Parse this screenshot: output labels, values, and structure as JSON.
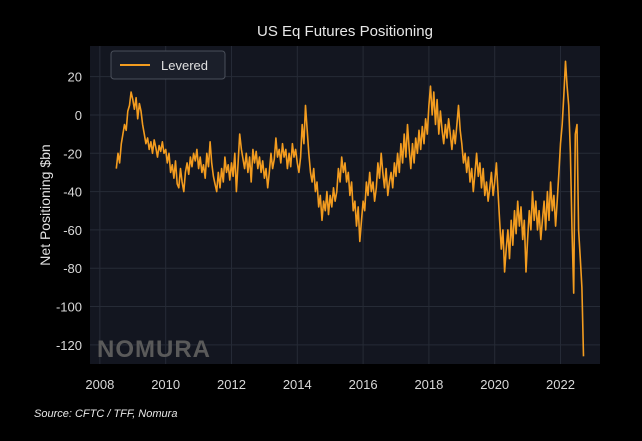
{
  "source_note": "Source: CFTC / TFF, Nomura",
  "watermark": "NOMURA",
  "colors": {
    "background": "#000000",
    "plot_background": "#131620",
    "grid": "#262b36",
    "line": "#f39c1f"
  },
  "chart_data": {
    "type": "line",
    "title": "US Eq Futures Positioning",
    "xlabel": "",
    "ylabel": "Net Positioning $bn",
    "xlim": [
      2007.7,
      2023.2
    ],
    "ylim": [
      -130,
      36
    ],
    "xticks": [
      2008,
      2010,
      2012,
      2014,
      2016,
      2018,
      2020,
      2022
    ],
    "yticks": [
      20,
      0,
      -20,
      -40,
      -60,
      -80,
      -100,
      -120
    ],
    "grid": true,
    "legend_position": "top-left",
    "series": [
      {
        "name": "Levered",
        "color": "#f39c1f",
        "points": [
          [
            2008.5,
            -28
          ],
          [
            2008.55,
            -20
          ],
          [
            2008.6,
            -25
          ],
          [
            2008.65,
            -15
          ],
          [
            2008.7,
            -10
          ],
          [
            2008.75,
            -5
          ],
          [
            2008.8,
            -8
          ],
          [
            2008.85,
            2
          ],
          [
            2008.9,
            5
          ],
          [
            2008.95,
            12
          ],
          [
            2009.0,
            8
          ],
          [
            2009.05,
            3
          ],
          [
            2009.1,
            9
          ],
          [
            2009.15,
            -2
          ],
          [
            2009.2,
            6
          ],
          [
            2009.25,
            2
          ],
          [
            2009.3,
            -5
          ],
          [
            2009.35,
            -10
          ],
          [
            2009.4,
            -15
          ],
          [
            2009.45,
            -12
          ],
          [
            2009.5,
            -18
          ],
          [
            2009.55,
            -14
          ],
          [
            2009.6,
            -20
          ],
          [
            2009.65,
            -13
          ],
          [
            2009.7,
            -17
          ],
          [
            2009.75,
            -22
          ],
          [
            2009.8,
            -16
          ],
          [
            2009.85,
            -19
          ],
          [
            2009.9,
            -14
          ],
          [
            2009.95,
            -20
          ],
          [
            2010.0,
            -18
          ],
          [
            2010.05,
            -25
          ],
          [
            2010.1,
            -20
          ],
          [
            2010.15,
            -30
          ],
          [
            2010.2,
            -26
          ],
          [
            2010.25,
            -33
          ],
          [
            2010.3,
            -24
          ],
          [
            2010.35,
            -36
          ],
          [
            2010.4,
            -38
          ],
          [
            2010.45,
            -28
          ],
          [
            2010.5,
            -35
          ],
          [
            2010.55,
            -40
          ],
          [
            2010.6,
            -30
          ],
          [
            2010.65,
            -25
          ],
          [
            2010.7,
            -31
          ],
          [
            2010.75,
            -22
          ],
          [
            2010.8,
            -27
          ],
          [
            2010.85,
            -20
          ],
          [
            2010.9,
            -24
          ],
          [
            2010.95,
            -18
          ],
          [
            2011.0,
            -28
          ],
          [
            2011.05,
            -22
          ],
          [
            2011.1,
            -30
          ],
          [
            2011.15,
            -26
          ],
          [
            2011.2,
            -33
          ],
          [
            2011.25,
            -20
          ],
          [
            2011.3,
            -27
          ],
          [
            2011.35,
            -14
          ],
          [
            2011.4,
            -25
          ],
          [
            2011.45,
            -32
          ],
          [
            2011.5,
            -36
          ],
          [
            2011.55,
            -40
          ],
          [
            2011.6,
            -30
          ],
          [
            2011.65,
            -38
          ],
          [
            2011.7,
            -28
          ],
          [
            2011.75,
            -35
          ],
          [
            2011.8,
            -22
          ],
          [
            2011.85,
            -30
          ],
          [
            2011.9,
            -26
          ],
          [
            2011.95,
            -34
          ],
          [
            2012.0,
            -25
          ],
          [
            2012.05,
            -32
          ],
          [
            2012.1,
            -20
          ],
          [
            2012.15,
            -40
          ],
          [
            2012.2,
            -25
          ],
          [
            2012.25,
            -10
          ],
          [
            2012.3,
            -18
          ],
          [
            2012.35,
            -23
          ],
          [
            2012.4,
            -28
          ],
          [
            2012.45,
            -20
          ],
          [
            2012.5,
            -30
          ],
          [
            2012.55,
            -22
          ],
          [
            2012.6,
            -35
          ],
          [
            2012.65,
            -18
          ],
          [
            2012.7,
            -25
          ],
          [
            2012.75,
            -19
          ],
          [
            2012.8,
            -28
          ],
          [
            2012.85,
            -22
          ],
          [
            2012.9,
            -30
          ],
          [
            2012.95,
            -24
          ],
          [
            2013.0,
            -33
          ],
          [
            2013.05,
            -28
          ],
          [
            2013.1,
            -38
          ],
          [
            2013.15,
            -30
          ],
          [
            2013.2,
            -20
          ],
          [
            2013.25,
            -28
          ],
          [
            2013.3,
            -23
          ],
          [
            2013.35,
            -12
          ],
          [
            2013.4,
            -22
          ],
          [
            2013.45,
            -18
          ],
          [
            2013.5,
            -25
          ],
          [
            2013.55,
            -15
          ],
          [
            2013.6,
            -22
          ],
          [
            2013.65,
            -18
          ],
          [
            2013.7,
            -28
          ],
          [
            2013.75,
            -20
          ],
          [
            2013.8,
            -27
          ],
          [
            2013.85,
            -15
          ],
          [
            2013.9,
            -22
          ],
          [
            2013.95,
            -18
          ],
          [
            2014.0,
            -25
          ],
          [
            2014.05,
            -30
          ],
          [
            2014.1,
            -22
          ],
          [
            2014.15,
            -5
          ],
          [
            2014.2,
            -15
          ],
          [
            2014.25,
            5
          ],
          [
            2014.3,
            -8
          ],
          [
            2014.35,
            -20
          ],
          [
            2014.4,
            -30
          ],
          [
            2014.45,
            -35
          ],
          [
            2014.5,
            -28
          ],
          [
            2014.55,
            -40
          ],
          [
            2014.6,
            -35
          ],
          [
            2014.65,
            -48
          ],
          [
            2014.7,
            -42
          ],
          [
            2014.75,
            -55
          ],
          [
            2014.8,
            -45
          ],
          [
            2014.85,
            -50
          ],
          [
            2014.9,
            -40
          ],
          [
            2014.95,
            -52
          ],
          [
            2015.0,
            -42
          ],
          [
            2015.05,
            -48
          ],
          [
            2015.1,
            -38
          ],
          [
            2015.15,
            -45
          ],
          [
            2015.2,
            -40
          ],
          [
            2015.25,
            -28
          ],
          [
            2015.3,
            -35
          ],
          [
            2015.35,
            -22
          ],
          [
            2015.4,
            -30
          ],
          [
            2015.45,
            -25
          ],
          [
            2015.5,
            -35
          ],
          [
            2015.55,
            -30
          ],
          [
            2015.6,
            -42
          ],
          [
            2015.65,
            -35
          ],
          [
            2015.7,
            -50
          ],
          [
            2015.75,
            -45
          ],
          [
            2015.8,
            -58
          ],
          [
            2015.85,
            -48
          ],
          [
            2015.9,
            -66
          ],
          [
            2015.95,
            -55
          ],
          [
            2016.0,
            -45
          ],
          [
            2016.05,
            -50
          ],
          [
            2016.1,
            -35
          ],
          [
            2016.15,
            -42
          ],
          [
            2016.2,
            -30
          ],
          [
            2016.25,
            -40
          ],
          [
            2016.3,
            -35
          ],
          [
            2016.35,
            -45
          ],
          [
            2016.4,
            -38
          ],
          [
            2016.45,
            -25
          ],
          [
            2016.5,
            -33
          ],
          [
            2016.55,
            -20
          ],
          [
            2016.6,
            -30
          ],
          [
            2016.65,
            -38
          ],
          [
            2016.7,
            -28
          ],
          [
            2016.75,
            -42
          ],
          [
            2016.8,
            -35
          ],
          [
            2016.85,
            -30
          ],
          [
            2016.9,
            -38
          ],
          [
            2016.95,
            -25
          ],
          [
            2017.0,
            -32
          ],
          [
            2017.05,
            -20
          ],
          [
            2017.1,
            -30
          ],
          [
            2017.15,
            -15
          ],
          [
            2017.2,
            -25
          ],
          [
            2017.25,
            -10
          ],
          [
            2017.3,
            -22
          ],
          [
            2017.35,
            -5
          ],
          [
            2017.4,
            -18
          ],
          [
            2017.45,
            -28
          ],
          [
            2017.5,
            -15
          ],
          [
            2017.55,
            -25
          ],
          [
            2017.6,
            -12
          ],
          [
            2017.65,
            -20
          ],
          [
            2017.7,
            -8
          ],
          [
            2017.75,
            -18
          ],
          [
            2017.8,
            -6
          ],
          [
            2017.85,
            -15
          ],
          [
            2017.9,
            -2
          ],
          [
            2017.95,
            -10
          ],
          [
            2018.0,
            5
          ],
          [
            2018.05,
            15
          ],
          [
            2018.1,
            0
          ],
          [
            2018.15,
            12
          ],
          [
            2018.2,
            -5
          ],
          [
            2018.25,
            8
          ],
          [
            2018.3,
            -10
          ],
          [
            2018.35,
            2
          ],
          [
            2018.4,
            -8
          ],
          [
            2018.45,
            -15
          ],
          [
            2018.5,
            -5
          ],
          [
            2018.55,
            -12
          ],
          [
            2018.6,
            -2
          ],
          [
            2018.65,
            -10
          ],
          [
            2018.7,
            -18
          ],
          [
            2018.75,
            -8
          ],
          [
            2018.8,
            -15
          ],
          [
            2018.85,
            -5
          ],
          [
            2018.9,
            5
          ],
          [
            2018.95,
            -8
          ],
          [
            2019.0,
            -15
          ],
          [
            2019.05,
            -25
          ],
          [
            2019.1,
            -20
          ],
          [
            2019.15,
            -30
          ],
          [
            2019.2,
            -22
          ],
          [
            2019.25,
            -35
          ],
          [
            2019.3,
            -28
          ],
          [
            2019.35,
            -40
          ],
          [
            2019.4,
            -30
          ],
          [
            2019.45,
            -20
          ],
          [
            2019.5,
            -32
          ],
          [
            2019.55,
            -25
          ],
          [
            2019.6,
            -38
          ],
          [
            2019.65,
            -28
          ],
          [
            2019.7,
            -42
          ],
          [
            2019.75,
            -35
          ],
          [
            2019.8,
            -45
          ],
          [
            2019.85,
            -38
          ],
          [
            2019.9,
            -30
          ],
          [
            2019.95,
            -42
          ],
          [
            2020.0,
            -35
          ],
          [
            2020.05,
            -25
          ],
          [
            2020.1,
            -40
          ],
          [
            2020.15,
            -55
          ],
          [
            2020.2,
            -70
          ],
          [
            2020.25,
            -60
          ],
          [
            2020.3,
            -82
          ],
          [
            2020.35,
            -70
          ],
          [
            2020.4,
            -60
          ],
          [
            2020.45,
            -75
          ],
          [
            2020.5,
            -55
          ],
          [
            2020.55,
            -68
          ],
          [
            2020.6,
            -50
          ],
          [
            2020.65,
            -62
          ],
          [
            2020.7,
            -45
          ],
          [
            2020.75,
            -58
          ],
          [
            2020.8,
            -48
          ],
          [
            2020.85,
            -65
          ],
          [
            2020.9,
            -55
          ],
          [
            2020.95,
            -82
          ],
          [
            2021.0,
            -65
          ],
          [
            2021.05,
            -50
          ],
          [
            2021.1,
            -60
          ],
          [
            2021.15,
            -40
          ],
          [
            2021.2,
            -55
          ],
          [
            2021.25,
            -45
          ],
          [
            2021.3,
            -60
          ],
          [
            2021.35,
            -50
          ],
          [
            2021.4,
            -65
          ],
          [
            2021.45,
            -55
          ],
          [
            2021.5,
            -45
          ],
          [
            2021.55,
            -60
          ],
          [
            2021.6,
            -40
          ],
          [
            2021.65,
            -55
          ],
          [
            2021.7,
            -35
          ],
          [
            2021.75,
            -50
          ],
          [
            2021.8,
            -42
          ],
          [
            2021.85,
            -58
          ],
          [
            2021.9,
            -45
          ],
          [
            2021.95,
            -30
          ],
          [
            2022.0,
            -15
          ],
          [
            2022.05,
            -5
          ],
          [
            2022.1,
            10
          ],
          [
            2022.15,
            28
          ],
          [
            2022.2,
            15
          ],
          [
            2022.25,
            5
          ],
          [
            2022.3,
            -20
          ],
          [
            2022.35,
            -60
          ],
          [
            2022.4,
            -93
          ],
          [
            2022.45,
            -10
          ],
          [
            2022.5,
            -5
          ],
          [
            2022.55,
            -60
          ],
          [
            2022.6,
            -75
          ],
          [
            2022.65,
            -90
          ],
          [
            2022.7,
            -126
          ]
        ]
      }
    ]
  }
}
